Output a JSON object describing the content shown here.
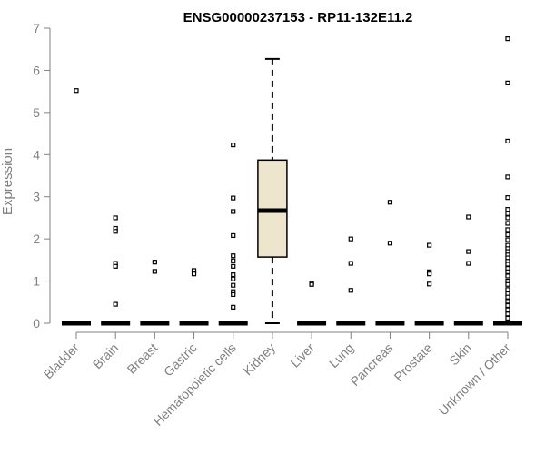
{
  "chart_data": {
    "type": "box",
    "title": "ENSG00000237153 - RP11-132E11.2",
    "xlabel": "",
    "ylabel": "Expression",
    "ylim": [
      0,
      7
    ],
    "yticks": [
      0,
      1,
      2,
      3,
      4,
      5,
      6,
      7
    ],
    "grid": false,
    "legend": "none",
    "colors": {
      "box_fill": "#ede6cc",
      "median": "#000000",
      "axis": "#808080",
      "text": "#808080"
    },
    "categories": [
      "Bladder",
      "Brain",
      "Breast",
      "Gastric",
      "Hematopoietic cells",
      "Kidney",
      "Liver",
      "Lung",
      "Pancreas",
      "Prostate",
      "Skin",
      "Unknown / Other"
    ],
    "boxes": [
      {
        "category": "Bladder",
        "min": 0,
        "q1": 0,
        "median": 0,
        "q3": 0,
        "max": 0,
        "outliers": [
          5.52
        ]
      },
      {
        "category": "Brain",
        "min": 0,
        "q1": 0,
        "median": 0,
        "q3": 0,
        "max": 0,
        "outliers": [
          2.5,
          2.25,
          2.18,
          1.42,
          1.35,
          0.45
        ]
      },
      {
        "category": "Breast",
        "min": 0,
        "q1": 0,
        "median": 0,
        "q3": 0,
        "max": 0,
        "outliers": [
          1.45,
          1.23
        ]
      },
      {
        "category": "Gastric",
        "min": 0,
        "q1": 0,
        "median": 0,
        "q3": 0,
        "max": 0,
        "outliers": [
          1.25,
          1.17
        ]
      },
      {
        "category": "Hematopoietic cells",
        "min": 0,
        "q1": 0,
        "median": 0,
        "q3": 0,
        "max": 0,
        "outliers": [
          4.23,
          2.97,
          2.65,
          2.08,
          1.6,
          1.48,
          1.35,
          1.15,
          1.05,
          0.9,
          0.75,
          0.68,
          0.38
        ]
      },
      {
        "category": "Kidney",
        "min": 0,
        "q1": 1.57,
        "median": 2.67,
        "q3": 3.87,
        "max": 6.27,
        "outliers": []
      },
      {
        "category": "Liver",
        "min": 0,
        "q1": 0,
        "median": 0,
        "q3": 0,
        "max": 0,
        "outliers": [
          0.95,
          0.92
        ]
      },
      {
        "category": "Lung",
        "min": 0,
        "q1": 0,
        "median": 0,
        "q3": 0,
        "max": 0,
        "outliers": [
          2.0,
          1.42,
          0.78
        ]
      },
      {
        "category": "Pancreas",
        "min": 0,
        "q1": 0,
        "median": 0,
        "q3": 0,
        "max": 0,
        "outliers": [
          2.87,
          1.9
        ]
      },
      {
        "category": "Prostate",
        "min": 0,
        "q1": 0,
        "median": 0,
        "q3": 0,
        "max": 0,
        "outliers": [
          1.85,
          1.22,
          1.17,
          0.93
        ]
      },
      {
        "category": "Skin",
        "min": 0,
        "q1": 0,
        "median": 0,
        "q3": 0,
        "max": 0,
        "outliers": [
          2.52,
          1.7,
          1.42
        ]
      },
      {
        "category": "Unknown / Other",
        "min": 0,
        "q1": 0,
        "median": 0,
        "q3": 0,
        "max": 0,
        "outliers": [
          6.75,
          5.7,
          4.32,
          3.47,
          2.98,
          2.7,
          2.6,
          2.5,
          2.37,
          2.22,
          2.1,
          1.98,
          1.85,
          1.77,
          1.7,
          1.62,
          1.55,
          1.47,
          1.4,
          1.3,
          1.22,
          1.12,
          1.0,
          0.92,
          0.8,
          0.7,
          0.62,
          0.52,
          0.42,
          0.32,
          0.22,
          0.12
        ]
      }
    ]
  }
}
